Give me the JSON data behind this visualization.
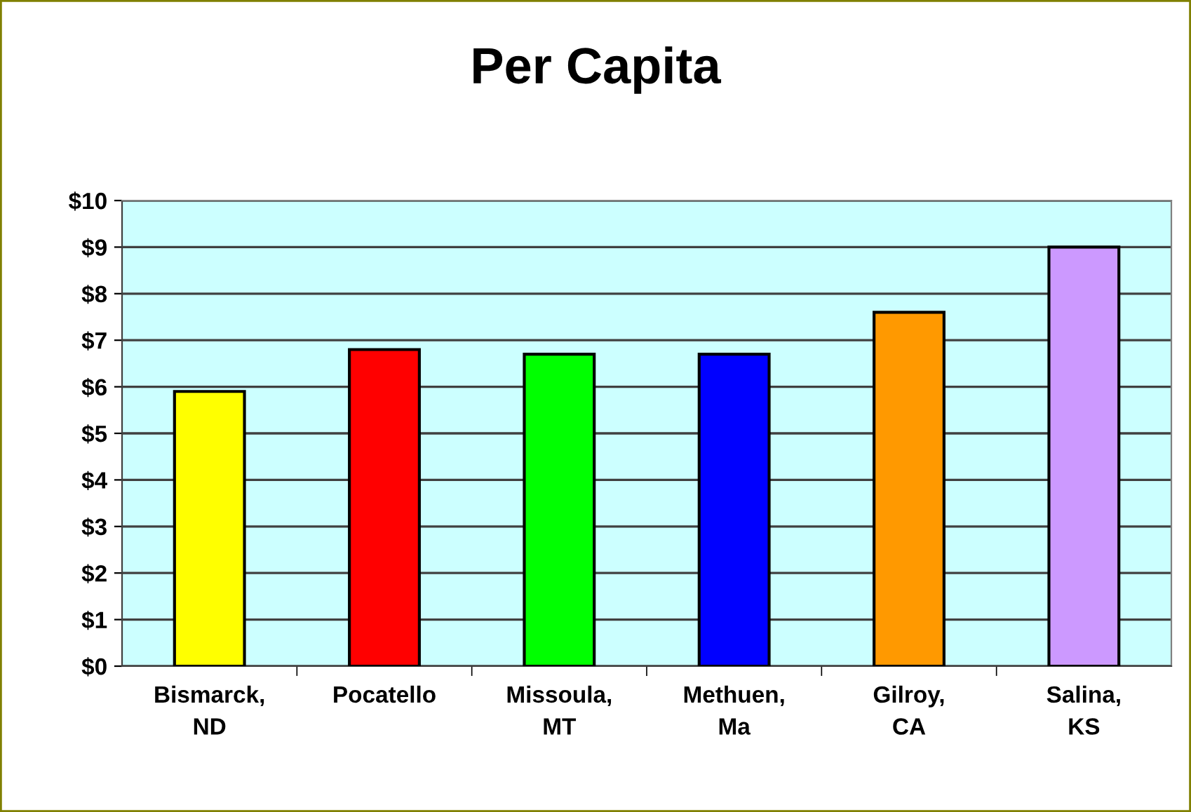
{
  "chart_data": {
    "type": "bar",
    "title": "Per Capita",
    "categories": [
      "Bismarck,\nND",
      "Pocatello",
      "Missoula,\nMT",
      "Methuen,\nMa",
      "Gilroy,\nCA",
      "Salina,\nKS"
    ],
    "values": [
      5.9,
      6.8,
      6.7,
      6.7,
      7.6,
      9.0
    ],
    "colors": [
      "#ffff00",
      "#ff0000",
      "#00ff00",
      "#0000ff",
      "#ff9900",
      "#cc99ff"
    ],
    "ylim": [
      0,
      10
    ],
    "yticks": [
      {
        "value": 0,
        "label": "$0"
      },
      {
        "value": 1,
        "label": "$1"
      },
      {
        "value": 2,
        "label": "$2"
      },
      {
        "value": 3,
        "label": "$3"
      },
      {
        "value": 4,
        "label": "$4"
      },
      {
        "value": 5,
        "label": "$5"
      },
      {
        "value": 6,
        "label": "$6"
      },
      {
        "value": 7,
        "label": "$7"
      },
      {
        "value": 8,
        "label": "$8"
      },
      {
        "value": 9,
        "label": "$9"
      },
      {
        "value": 10,
        "label": "$10"
      }
    ],
    "grid": "y"
  }
}
